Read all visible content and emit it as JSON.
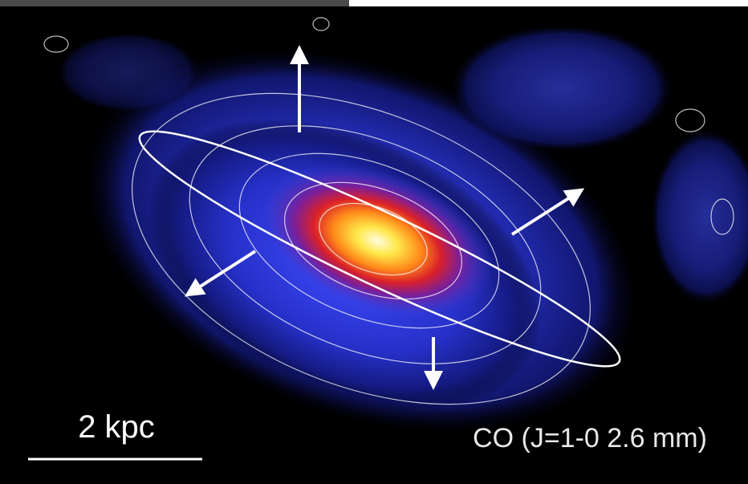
{
  "labels": {
    "scale": "2 kpc",
    "tracer": "CO (J=1-0 2.6 mm)"
  }
}
